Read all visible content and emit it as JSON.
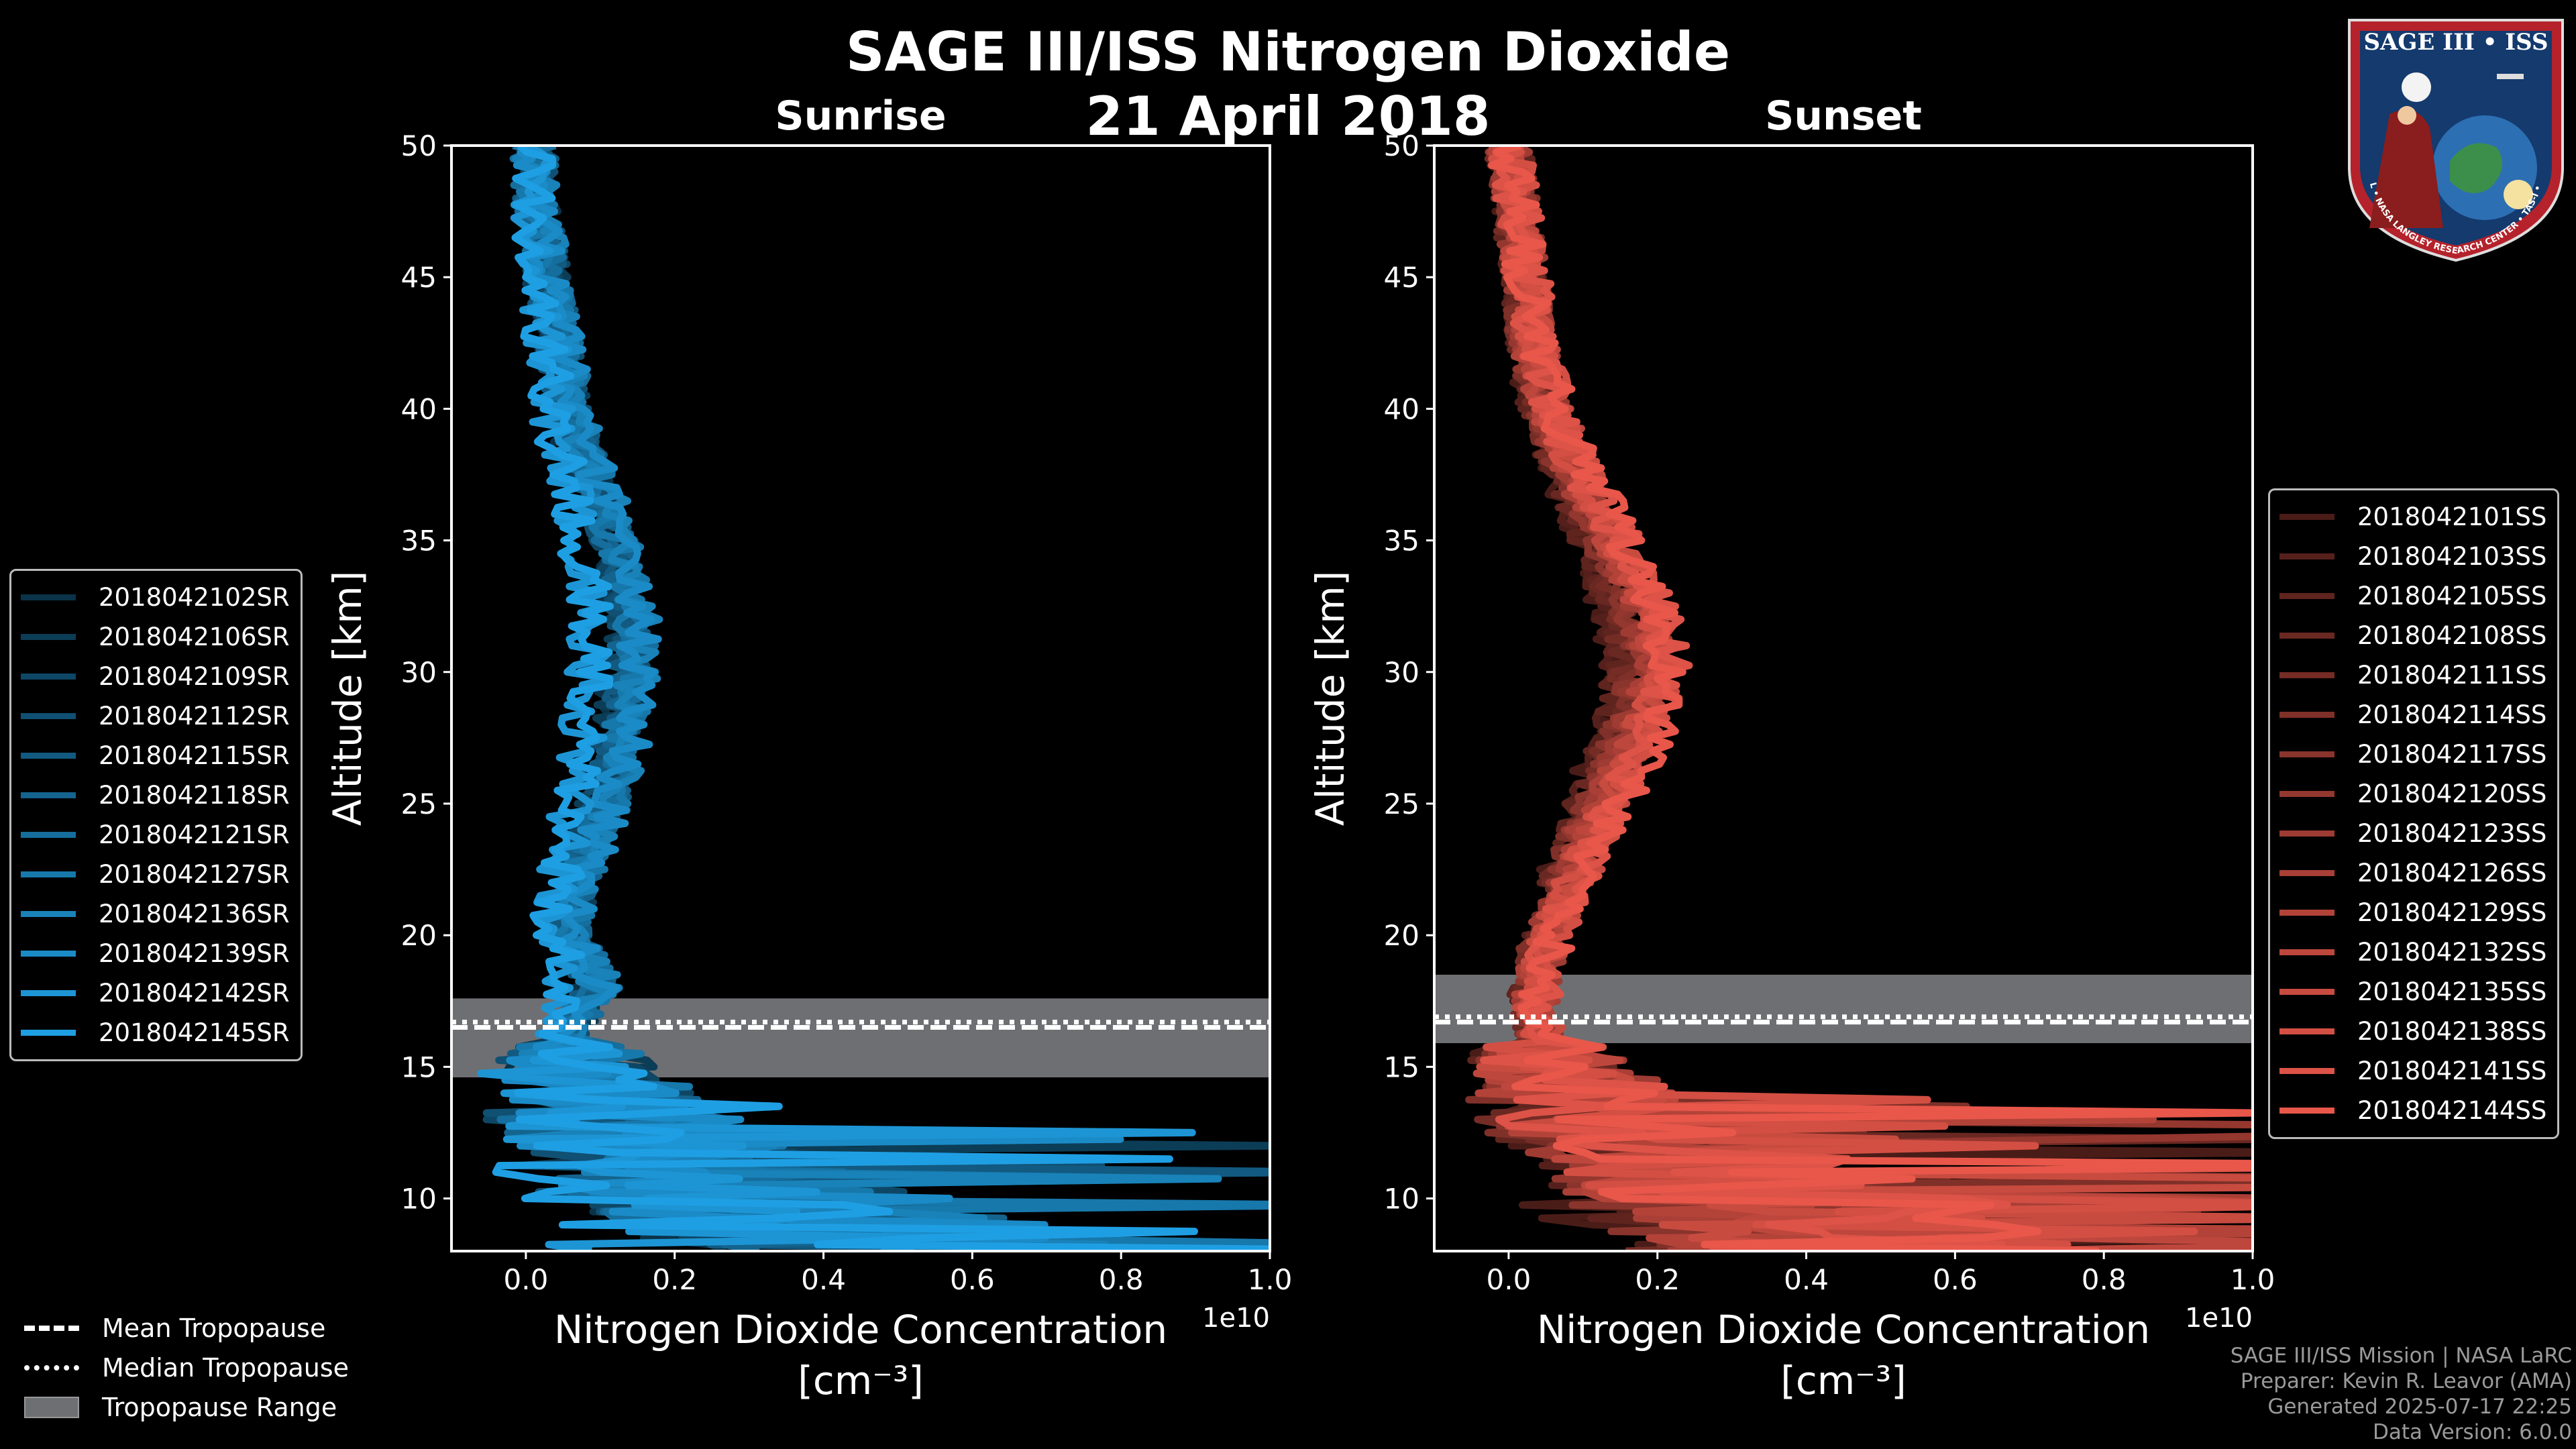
{
  "title": "SAGE III/ISS Nitrogen Dioxide",
  "date": "21 April 2018",
  "logo": {
    "text": "SAGE III • ISS",
    "ring_text": "BALL • NASA LANGLEY RESEARCH CENTER • TAS-I • ESA"
  },
  "credits": [
    "SAGE III/ISS Mission | NASA LaRC",
    "Preparer: Kevin R. Leavor (AMA)",
    "Generated 2025-07-17 22:25",
    "Data Version: 6.0.0"
  ],
  "tropopause_legend": [
    {
      "label": "Mean Tropopause",
      "style": "dashed"
    },
    {
      "label": "Median Tropopause",
      "style": "dotted"
    },
    {
      "label": "Tropopause Range",
      "style": "band"
    }
  ],
  "chart_data": [
    {
      "type": "line",
      "title": "Sunrise",
      "xlabel": "Nitrogen Dioxide Concentration",
      "xlabel_unit": "[cm⁻³]",
      "ylabel": "Altitude [km]",
      "x_offset_label": "1e10",
      "xlim": [
        -0.1,
        1.0
      ],
      "ylim": [
        8,
        50
      ],
      "xticks": [
        "0.0",
        "0.2",
        "0.4",
        "0.6",
        "0.8",
        "1.0"
      ],
      "yticks": [
        "10",
        "15",
        "20",
        "25",
        "30",
        "35",
        "40",
        "45",
        "50"
      ],
      "color": "#1f9fe3",
      "tropopause": {
        "mean": 16.5,
        "median": 16.7,
        "range": [
          14.6,
          17.6
        ]
      },
      "series": [
        {
          "name": "2018042102SR"
        },
        {
          "name": "2018042106SR"
        },
        {
          "name": "2018042109SR"
        },
        {
          "name": "2018042112SR"
        },
        {
          "name": "2018042115SR"
        },
        {
          "name": "2018042118SR"
        },
        {
          "name": "2018042121SR"
        },
        {
          "name": "2018042127SR"
        },
        {
          "name": "2018042136SR"
        },
        {
          "name": "2018042139SR"
        },
        {
          "name": "2018042142SR"
        },
        {
          "name": "2018042145SR"
        }
      ],
      "mean_profile": {
        "altitude": [
          8,
          9,
          10,
          11,
          12,
          13,
          14,
          15,
          16,
          17,
          18,
          19,
          20,
          22,
          24,
          26,
          28,
          30,
          32,
          34,
          36,
          38,
          40,
          42,
          44,
          46,
          48,
          50
        ],
        "value": [
          0.45,
          0.35,
          0.25,
          0.18,
          0.14,
          0.1,
          0.08,
          0.06,
          0.05,
          0.06,
          0.08,
          0.07,
          0.05,
          0.06,
          0.08,
          0.1,
          0.11,
          0.12,
          0.12,
          0.11,
          0.09,
          0.07,
          0.05,
          0.04,
          0.03,
          0.02,
          0.01,
          0.01
        ]
      }
    },
    {
      "type": "line",
      "title": "Sunset",
      "xlabel": "Nitrogen Dioxide Concentration",
      "xlabel_unit": "[cm⁻³]",
      "ylabel": "Altitude [km]",
      "x_offset_label": "1e10",
      "xlim": [
        -0.1,
        1.0
      ],
      "ylim": [
        8,
        50
      ],
      "xticks": [
        "0.0",
        "0.2",
        "0.4",
        "0.6",
        "0.8",
        "1.0"
      ],
      "yticks": [
        "10",
        "15",
        "20",
        "25",
        "30",
        "35",
        "40",
        "45",
        "50"
      ],
      "color": "#e8574a",
      "tropopause": {
        "mean": 16.7,
        "median": 16.9,
        "range": [
          15.9,
          18.5
        ]
      },
      "series": [
        {
          "name": "2018042101SS"
        },
        {
          "name": "2018042103SS"
        },
        {
          "name": "2018042105SS"
        },
        {
          "name": "2018042108SS"
        },
        {
          "name": "2018042111SS"
        },
        {
          "name": "2018042114SS"
        },
        {
          "name": "2018042117SS"
        },
        {
          "name": "2018042120SS"
        },
        {
          "name": "2018042123SS"
        },
        {
          "name": "2018042126SS"
        },
        {
          "name": "2018042129SS"
        },
        {
          "name": "2018042132SS"
        },
        {
          "name": "2018042135SS"
        },
        {
          "name": "2018042138SS"
        },
        {
          "name": "2018042141SS"
        },
        {
          "name": "2018042144SS"
        }
      ],
      "mean_profile": {
        "altitude": [
          8,
          9,
          10,
          11,
          12,
          13,
          14,
          15,
          16,
          17,
          18,
          19,
          20,
          22,
          24,
          26,
          28,
          30,
          32,
          34,
          36,
          38,
          40,
          42,
          44,
          46,
          48,
          50
        ],
        "value": [
          0.55,
          0.45,
          0.38,
          0.3,
          0.22,
          0.15,
          0.1,
          0.07,
          0.05,
          0.04,
          0.04,
          0.05,
          0.06,
          0.09,
          0.12,
          0.16,
          0.19,
          0.21,
          0.2,
          0.17,
          0.13,
          0.09,
          0.06,
          0.04,
          0.03,
          0.02,
          0.01,
          0.0
        ]
      }
    }
  ]
}
